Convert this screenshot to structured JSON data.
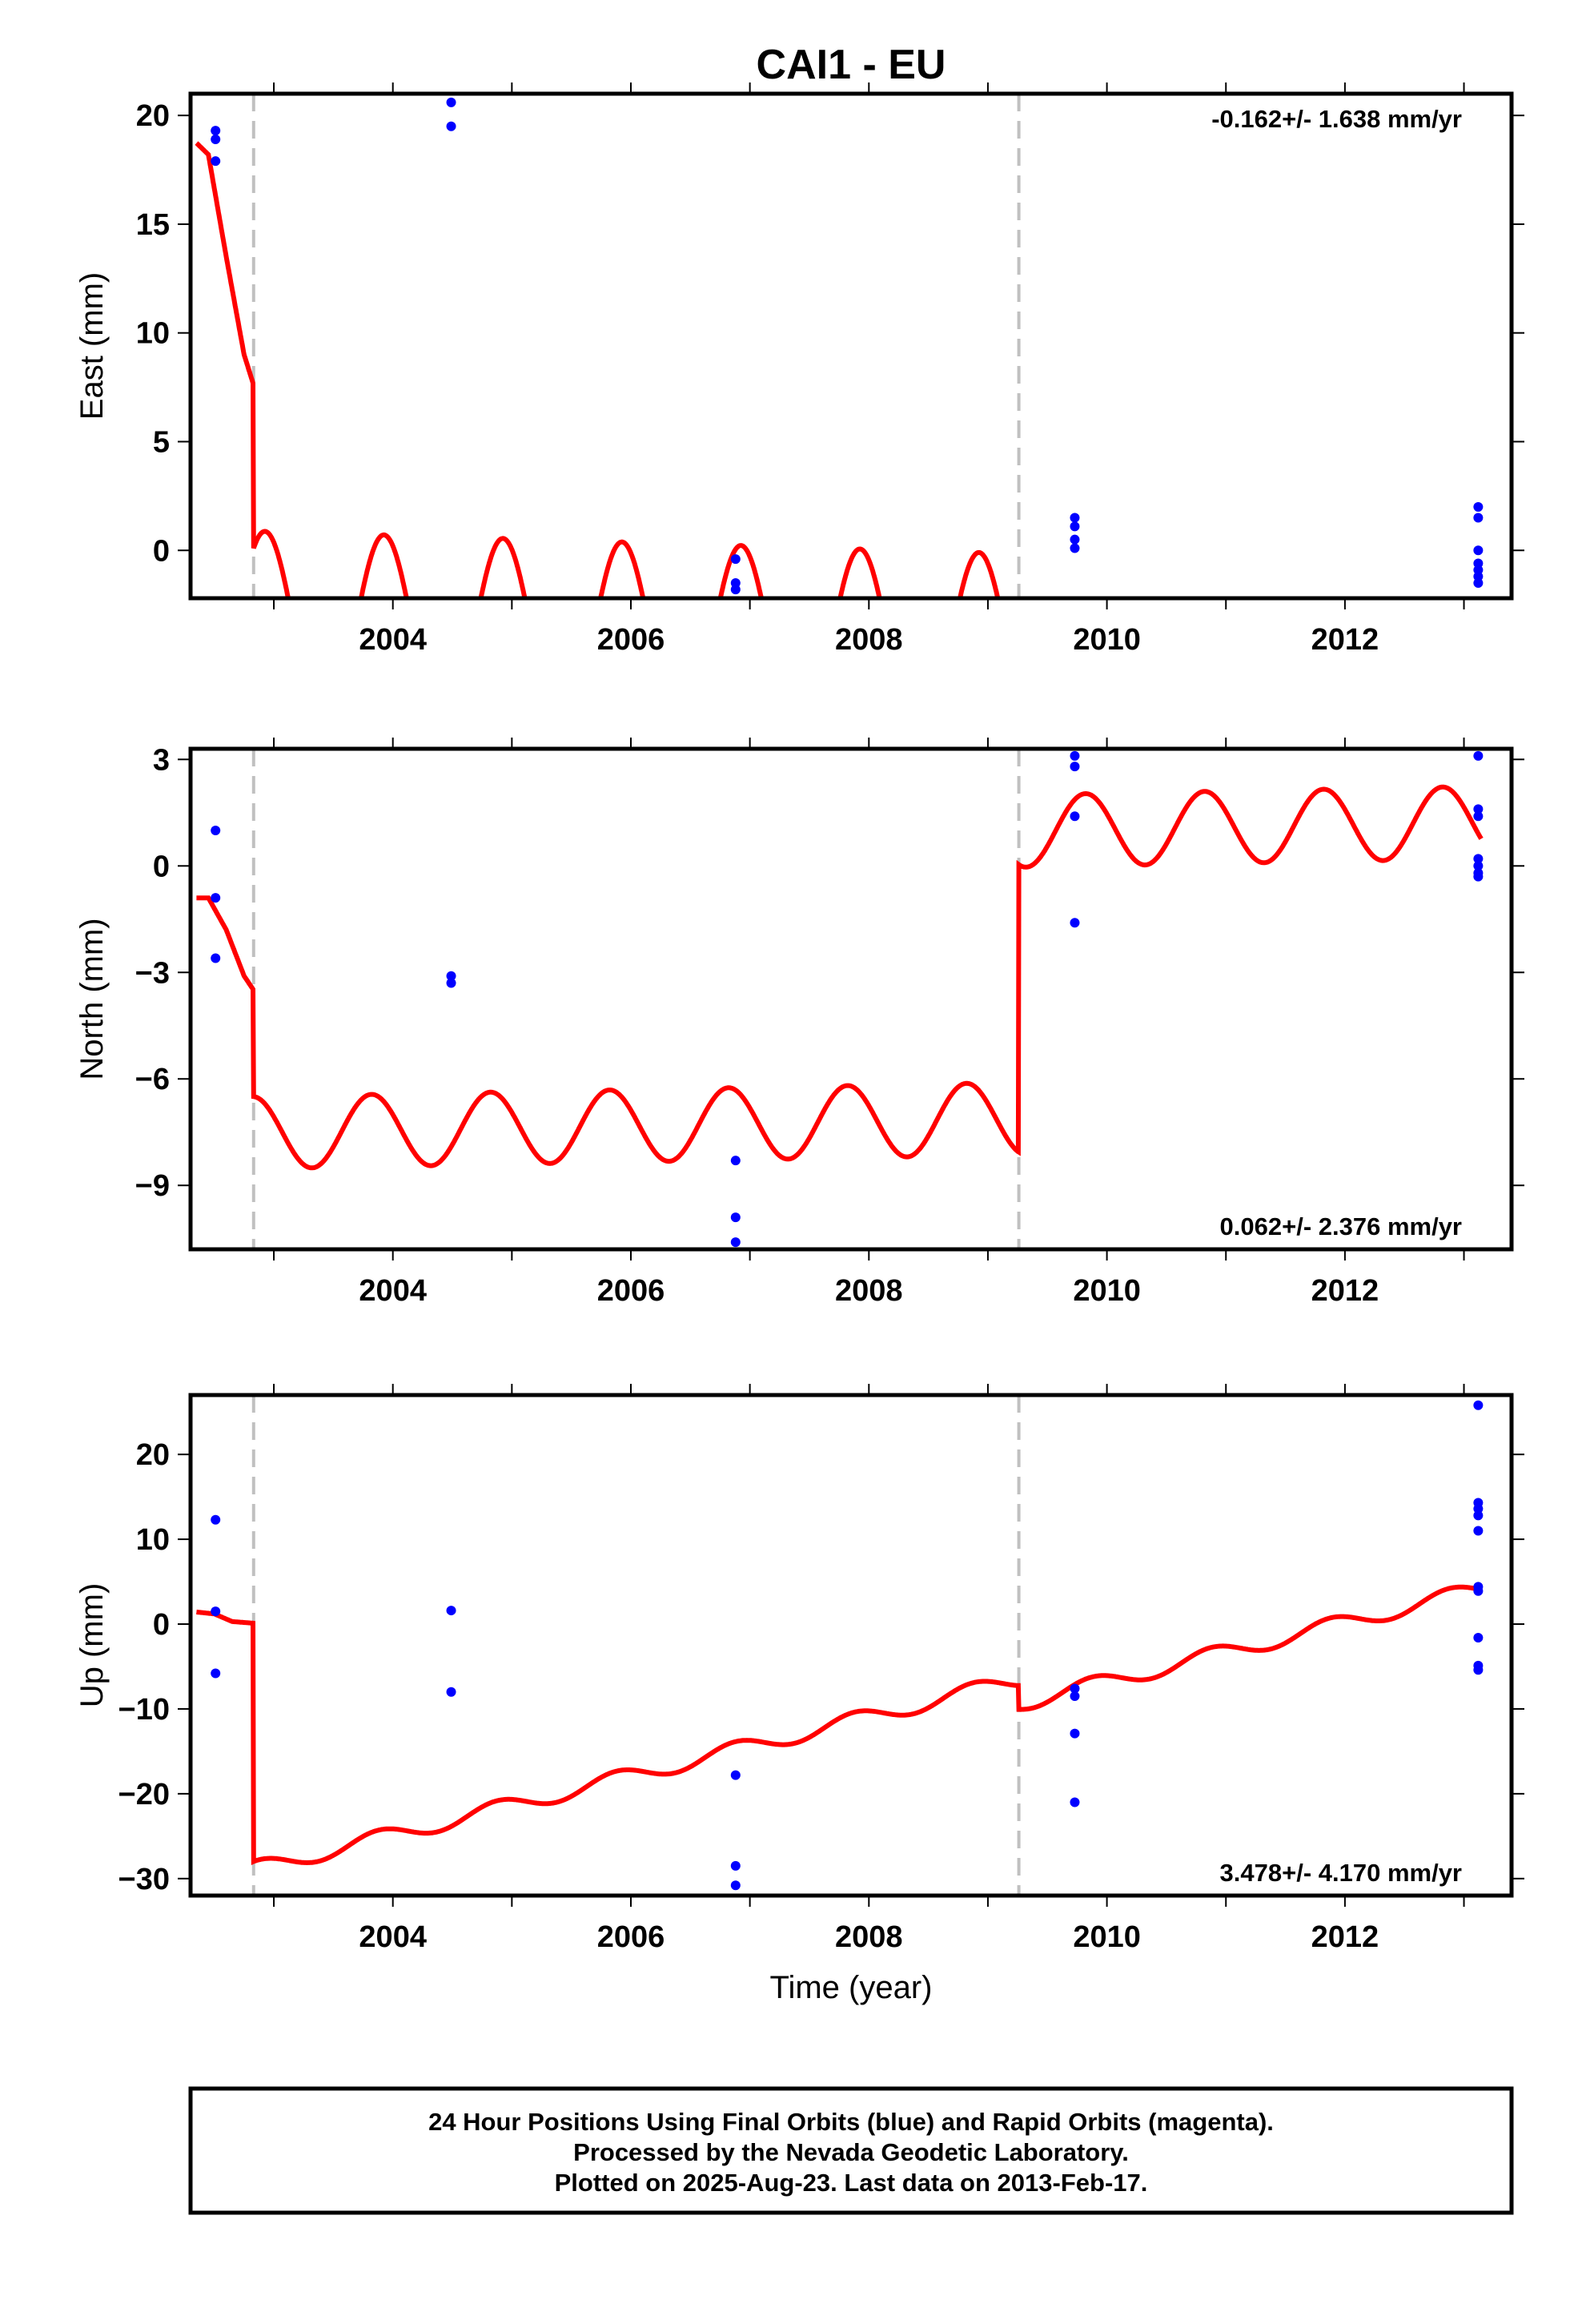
{
  "title": "CAI1 - EU",
  "footer": {
    "line1": "24 Hour Positions Using Final Orbits (blue) and Rapid Orbits (magenta).",
    "line2": "Processed by the Nevada Geodetic Laboratory.",
    "line3": "Plotted on 2025-Aug-23. Last data on 2013-Feb-17."
  },
  "colors": {
    "model": "#ff0000",
    "final_points": "#0000ff",
    "breaks": "#c0c0c0"
  },
  "chart_data": [
    {
      "type": "scatter",
      "component": "east",
      "ylabel": "East (mm)",
      "xlabel": "",
      "xlim": [
        2002.3,
        2013.4
      ],
      "ylim": [
        -2.2,
        21
      ],
      "xticks": [
        2004,
        2006,
        2008,
        2010,
        2012
      ],
      "yticks": [
        0,
        5,
        10,
        15,
        20
      ],
      "rate_text": "-0.162+/- 1.638 mm/yr",
      "breaks": [
        2002.83,
        2009.26
      ],
      "model": {
        "offset": 1.2,
        "amp1": 2.8,
        "phase1": 1.1,
        "amp2": 3.7,
        "phase2": 0.5,
        "trend": -0.162,
        "t0": 2002.3,
        "steps": [
          [
            2002.83,
            -4.8
          ],
          [
            2009.26,
            -5.0
          ]
        ],
        "head": {
          "end": 2002.83,
          "values": [
            [
              2002.3,
              19.0
            ],
            [
              2002.45,
              18.2
            ],
            [
              2002.6,
              13.5
            ],
            [
              2002.75,
              9.0
            ],
            [
              2002.83,
              7.6
            ]
          ]
        }
      },
      "points": [
        [
          2002.51,
          19.3
        ],
        [
          2002.51,
          18.9
        ],
        [
          2002.51,
          17.9
        ],
        [
          2004.49,
          20.6
        ],
        [
          2004.49,
          19.5
        ],
        [
          2006.88,
          -0.4
        ],
        [
          2006.88,
          -1.5
        ],
        [
          2006.88,
          -1.8
        ],
        [
          2009.73,
          1.5
        ],
        [
          2009.73,
          1.1
        ],
        [
          2009.73,
          0.5
        ],
        [
          2009.73,
          0.1
        ],
        [
          2013.12,
          2.0
        ],
        [
          2013.12,
          1.5
        ],
        [
          2013.12,
          0.0
        ],
        [
          2013.12,
          -0.6
        ],
        [
          2013.12,
          -0.9
        ],
        [
          2013.12,
          -1.2
        ],
        [
          2013.12,
          -1.5
        ]
      ]
    },
    {
      "type": "scatter",
      "component": "north",
      "ylabel": "North (mm)",
      "xlabel": "",
      "xlim": [
        2002.3,
        2013.4
      ],
      "ylim": [
        -10.8,
        3.3
      ],
      "xticks": [
        2004,
        2006,
        2008,
        2010,
        2012
      ],
      "yticks": [
        3,
        0,
        -3,
        -6,
        -9
      ],
      "ytick_labels": [
        "3",
        "0",
        "−3",
        "−6",
        "−9"
      ],
      "rate_text": "0.062+/- 2.376 mm/yr",
      "breaks": [
        2002.83,
        2009.26
      ],
      "model": {
        "offset": -7.55,
        "amp1": 0.4,
        "phase1": 1.5,
        "amp2": 0.95,
        "phase2": 0.9,
        "trend": 0.062,
        "t0": 2002.3,
        "steps": [
          [
            2002.83,
            0.0
          ],
          [
            2009.26,
            8.1
          ]
        ],
        "head": {
          "end": 2002.83,
          "values": [
            [
              2002.3,
              -0.9
            ],
            [
              2002.45,
              -0.9
            ],
            [
              2002.6,
              -1.8
            ],
            [
              2002.75,
              -3.1
            ],
            [
              2002.83,
              -3.5
            ]
          ]
        }
      },
      "points": [
        [
          2002.51,
          1.0
        ],
        [
          2002.51,
          -0.9
        ],
        [
          2002.51,
          -2.6
        ],
        [
          2004.49,
          -3.1
        ],
        [
          2004.49,
          -3.3
        ],
        [
          2006.88,
          -8.3
        ],
        [
          2006.88,
          -9.9
        ],
        [
          2006.88,
          -10.6
        ],
        [
          2009.73,
          3.1
        ],
        [
          2009.73,
          2.8
        ],
        [
          2009.73,
          1.4
        ],
        [
          2009.73,
          -1.6
        ],
        [
          2013.12,
          3.1
        ],
        [
          2013.12,
          1.6
        ],
        [
          2013.12,
          1.4
        ],
        [
          2013.12,
          0.2
        ],
        [
          2013.12,
          0.0
        ],
        [
          2013.12,
          -0.2
        ],
        [
          2013.12,
          -0.3
        ]
      ]
    },
    {
      "type": "scatter",
      "component": "up",
      "ylabel": "Up (mm)",
      "xlabel": "Time (year)",
      "xlim": [
        2002.3,
        2013.4
      ],
      "ylim": [
        -32,
        27
      ],
      "xticks": [
        2004,
        2006,
        2008,
        2010,
        2012
      ],
      "yticks": [
        20,
        10,
        0,
        -10,
        -20,
        -30
      ],
      "ytick_labels": [
        "20",
        "10",
        "0",
        "−10",
        "−20",
        "−30"
      ],
      "rate_text": "3.478+/- 4.170 mm/yr",
      "breaks": [
        2002.83,
        2009.26
      ],
      "model": {
        "offset": -28.9,
        "amp1": 0.6,
        "phase1": 1.2,
        "amp2": 0.9,
        "phase2": 0.8,
        "trend": 3.478,
        "t0": 2002.83,
        "steps": [
          [
            2002.83,
            0.0
          ],
          [
            2009.26,
            -2.8
          ]
        ],
        "head": {
          "end": 2002.83,
          "values": [
            [
              2002.3,
              1.5
            ],
            [
              2002.5,
              1.2
            ],
            [
              2002.65,
              0.3
            ],
            [
              2002.83,
              0.1
            ]
          ]
        }
      },
      "points": [
        [
          2002.51,
          12.3
        ],
        [
          2002.51,
          1.5
        ],
        [
          2002.51,
          -5.8
        ],
        [
          2004.49,
          1.6
        ],
        [
          2004.49,
          -8.0
        ],
        [
          2006.88,
          -17.8
        ],
        [
          2006.88,
          -28.5
        ],
        [
          2006.88,
          -30.8
        ],
        [
          2009.73,
          -7.6
        ],
        [
          2009.73,
          -8.5
        ],
        [
          2009.73,
          -12.9
        ],
        [
          2009.73,
          -21.0
        ],
        [
          2013.12,
          25.8
        ],
        [
          2013.12,
          14.3
        ],
        [
          2013.12,
          13.6
        ],
        [
          2013.12,
          12.8
        ],
        [
          2013.12,
          11.0
        ],
        [
          2013.12,
          4.4
        ],
        [
          2013.12,
          3.9
        ],
        [
          2013.12,
          -1.6
        ],
        [
          2013.12,
          -4.9
        ],
        [
          2013.12,
          -5.4
        ]
      ]
    }
  ]
}
